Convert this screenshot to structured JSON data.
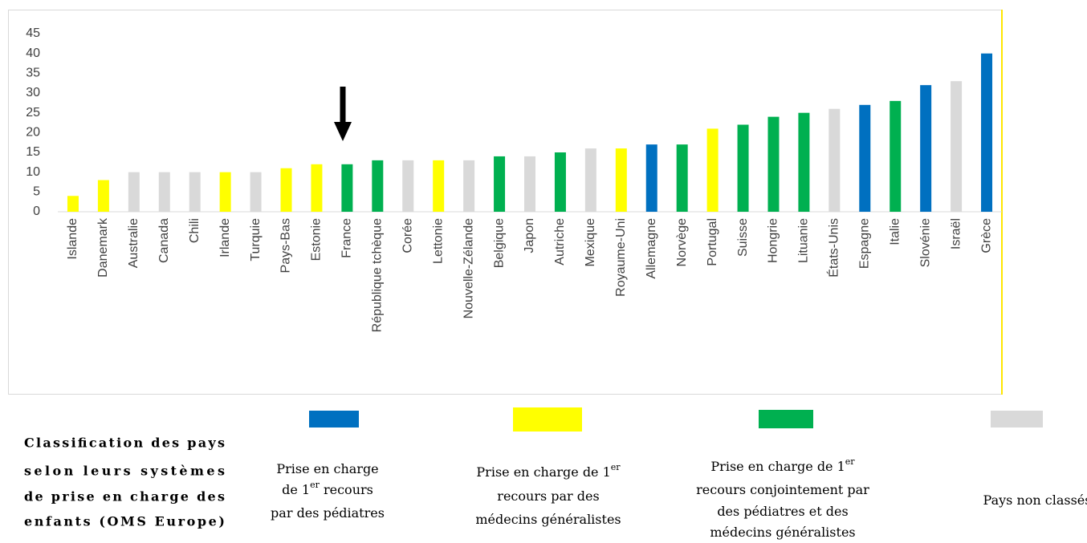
{
  "chart_data": {
    "type": "bar",
    "categories": [
      "Islande",
      "Danemark",
      "Australie",
      "Canada",
      "Chili",
      "Irlande",
      "Turquie",
      "Pays-Bas",
      "Estonie",
      "France",
      "République tchèque",
      "Corée",
      "Lettonie",
      "Nouvelle-Zélande",
      "Belgique",
      "Japon",
      "Autriche",
      "Mexique",
      "Royaume-Uni",
      "Allemagne",
      "Norvège",
      "Portugal",
      "Suisse",
      "Hongrie",
      "Lituanie",
      "États-Unis",
      "Espagne",
      "Italie",
      "Slovénie",
      "Israël",
      "Grèce"
    ],
    "values": [
      4,
      8,
      10,
      10,
      10,
      10,
      10,
      11,
      12,
      12,
      13,
      13,
      13,
      13,
      14,
      14,
      15,
      16,
      16,
      17,
      17,
      21,
      22,
      24,
      25,
      26,
      27,
      28,
      32,
      33,
      40
    ],
    "colors": [
      "#ffff00",
      "#ffff00",
      "#d9d9d9",
      "#d9d9d9",
      "#d9d9d9",
      "#ffff00",
      "#d9d9d9",
      "#ffff00",
      "#ffff00",
      "#00b050",
      "#00b050",
      "#d9d9d9",
      "#ffff00",
      "#d9d9d9",
      "#00b050",
      "#d9d9d9",
      "#00b050",
      "#d9d9d9",
      "#ffff00",
      "#0070c0",
      "#00b050",
      "#ffff00",
      "#00b050",
      "#00b050",
      "#00b050",
      "#d9d9d9",
      "#0070c0",
      "#00b050",
      "#0070c0",
      "#d9d9d9",
      "#0070c0"
    ],
    "ylim": [
      0,
      45
    ],
    "yticks": [
      0,
      5,
      10,
      15,
      20,
      25,
      30,
      35,
      40,
      45
    ],
    "grid": false,
    "legend_title": [
      "Classification des pays",
      "selon leurs systèmes",
      "de prise en charge des",
      "enfants (OMS Europe)"
    ],
    "legend": [
      {
        "color": "#0070c0",
        "lines": [
          [
            "Prise en charge"
          ],
          [
            "de 1",
            "er",
            " recours"
          ],
          [
            "par des pédiatres"
          ]
        ]
      },
      {
        "color": "#ffff00",
        "lines": [
          [
            "Prise en charge de 1",
            "er"
          ],
          [
            "recours par des"
          ],
          [
            "médecins généralistes"
          ]
        ]
      },
      {
        "color": "#00b050",
        "lines": [
          [
            "Prise en charge de 1",
            "er"
          ],
          [
            "recours conjointement par"
          ],
          [
            "des pédiatres et des"
          ],
          [
            "médecins généralistes"
          ]
        ]
      },
      {
        "color": "#d9d9d9",
        "lines": [
          [
            "Pays non classés"
          ]
        ]
      }
    ]
  }
}
